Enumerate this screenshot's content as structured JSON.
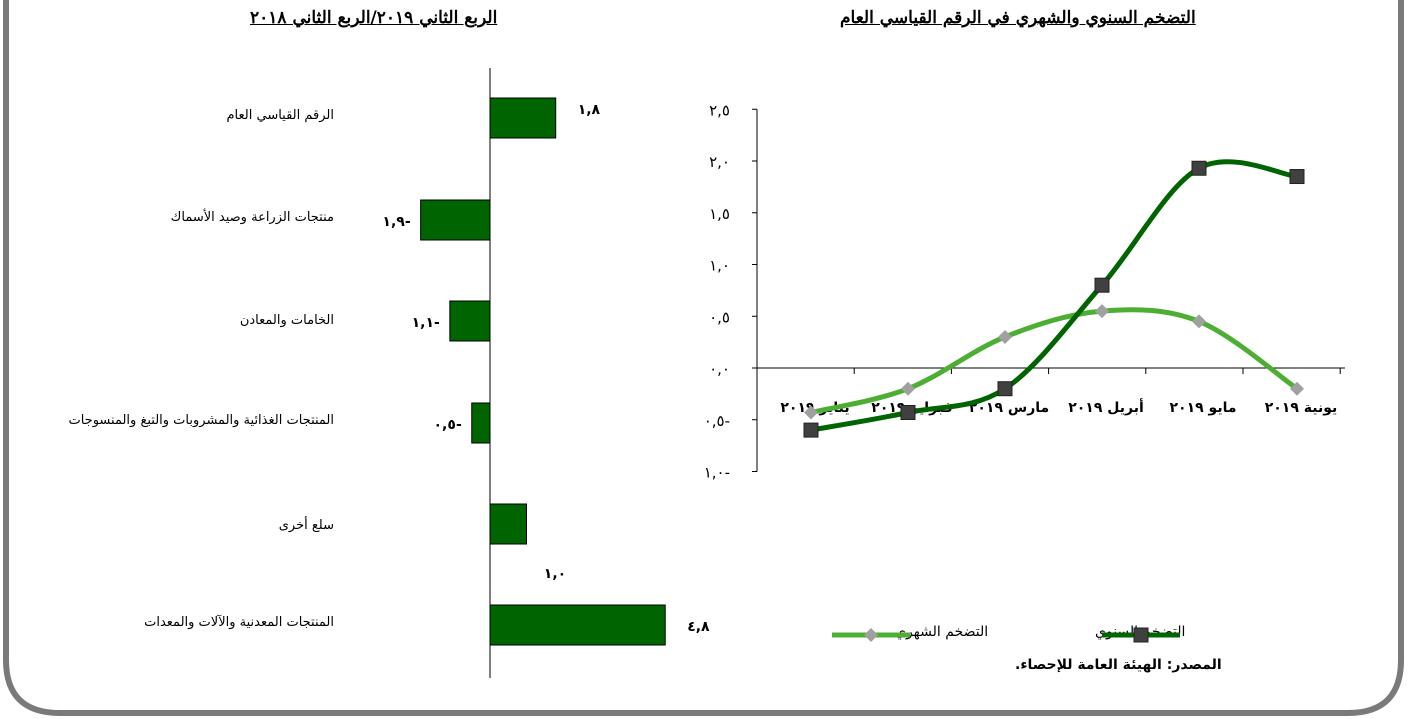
{
  "left_title": "الربع الثاني ٢٠١٩/الربع الثاني ٢٠١٨",
  "right_title": "التضخم السنوي والشهري في الرقم القياسي العام",
  "source": "المصدر: الهيئة العامة للإحصاء.",
  "colors": {
    "bar": "#006400",
    "annual": "#006400",
    "monthly": "#4caf33",
    "marker_annual": "#404040",
    "marker_monthly": "#a0a0a0"
  },
  "chart_data": [
    {
      "type": "bar",
      "orientation": "horizontal",
      "title": "الربع الثاني ٢٠١٩/الربع الثاني ٢٠١٨",
      "categories": [
        "الرقم القياسي العام",
        "منتجات الزراعة وصيد الأسماك",
        "الخامات والمعادن",
        "المنتجات الغذائية والمشروبات والتبغ والمنسوجات",
        "سلع أخرى",
        "المنتجات المعدنية والآلات والمعدات"
      ],
      "values": [
        1.8,
        -1.9,
        -1.1,
        -0.5,
        1.0,
        4.8
      ],
      "value_labels": [
        "١,٨",
        "١,٩-",
        "١,١-",
        "٠,٥-",
        "١,٠",
        "٤,٨"
      ]
    },
    {
      "type": "line",
      "title": "التضخم السنوي والشهري في الرقم القياسي العام",
      "categories": [
        "يناير ٢٠١٩",
        "فبراير ٢٠١٩",
        "مارس ٢٠١٩",
        "أبريل ٢٠١٩",
        "مايو ٢٠١٩",
        "يونية ٢٠١٩"
      ],
      "ylim": [
        -1.0,
        2.5
      ],
      "yticks": [
        2.5,
        2.0,
        1.5,
        1.0,
        0.5,
        0.0,
        -0.5,
        -1.0
      ],
      "ytick_labels": [
        "٢,٥",
        "٢,٠",
        "١,٥",
        "١,٠",
        "٠,٥",
        "٠,٠",
        "٠,٥-",
        "١,٠-"
      ],
      "series": [
        {
          "name": "التضخم السنوي",
          "values": [
            -0.6,
            -0.43,
            -0.2,
            0.8,
            1.93,
            1.85
          ]
        },
        {
          "name": "التضخم الشهري",
          "values": [
            -0.43,
            -0.2,
            0.3,
            0.55,
            0.45,
            -0.2
          ]
        }
      ]
    }
  ]
}
